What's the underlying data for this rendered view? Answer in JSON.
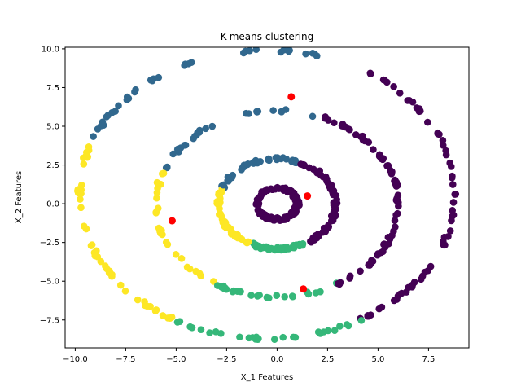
{
  "chart_data": {
    "type": "scatter",
    "title": "K-means clustering",
    "xlabel": "X_1 Features",
    "ylabel": "X_2 Features",
    "xlim": [
      -10.5,
      9.5
    ],
    "ylim": [
      -9.3,
      10.1
    ],
    "xticks": [
      -10.0,
      -7.5,
      -5.0,
      -2.5,
      0.0,
      2.5,
      5.0,
      7.5
    ],
    "xtick_labels": [
      "−10.0",
      "−7.5",
      "−5.0",
      "−2.5",
      "0.0",
      "2.5",
      "5.0",
      "7.5"
    ],
    "yticks": [
      -7.5,
      -5.0,
      -2.5,
      0.0,
      2.5,
      5.0,
      7.5,
      10.0
    ],
    "ytick_labels": [
      "−7.5",
      "−5.0",
      "−2.5",
      "0.0",
      "2.5",
      "5.0",
      "7.5",
      "10.0"
    ],
    "grid": false,
    "rings": [
      {
        "center": [
          0.0,
          0.0
        ],
        "radius": 1.0,
        "points": 120
      },
      {
        "center": [
          0.0,
          0.0
        ],
        "radius": 2.9,
        "points": 200
      },
      {
        "center": [
          0.0,
          0.0
        ],
        "radius": 6.0,
        "points": 150
      },
      {
        "center": [
          -0.5,
          0.6
        ],
        "radius": 9.3,
        "points": 170
      }
    ],
    "clusters": [
      {
        "color": "#440154",
        "angle_start": -60,
        "angle_end": 70,
        "inner_all": true
      },
      {
        "color": "#31688e",
        "angle_start": 70,
        "angle_end": 160
      },
      {
        "color": "#fde725",
        "angle_start": 160,
        "angle_end": 240
      },
      {
        "color": "#35b779",
        "angle_start": 240,
        "angle_end": 300
      }
    ],
    "centroids": [
      {
        "x": 0.7,
        "y": 6.9
      },
      {
        "x": 1.5,
        "y": 0.5
      },
      {
        "x": -5.2,
        "y": -1.1
      },
      {
        "x": 1.3,
        "y": -5.5
      }
    ],
    "centroid_color": "#ff0000"
  }
}
